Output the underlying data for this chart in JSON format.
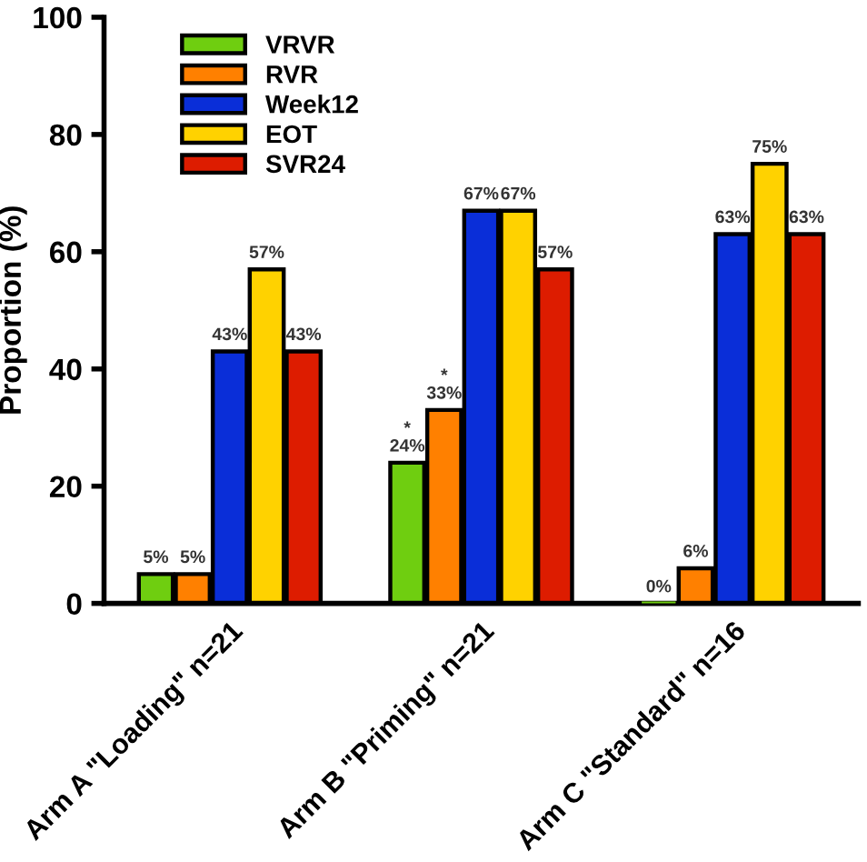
{
  "chart_data": {
    "type": "bar",
    "ylabel": "Proportion (%)",
    "categories": [
      "Arm A \"Loading\" n=21",
      "Arm B \"Priming\" n=21",
      "Arm C \"Standard\" n=16"
    ],
    "series": [
      {
        "name": "VRVR",
        "color": "#6fce10",
        "values": [
          5,
          24,
          0
        ],
        "value_labels": [
          "5%",
          "*\n24%",
          "0%"
        ]
      },
      {
        "name": "RVR",
        "color": "#ff8000",
        "values": [
          5,
          33,
          6
        ],
        "value_labels": [
          "5%",
          "*\n33%",
          "6%"
        ]
      },
      {
        "name": "Week12",
        "color": "#0a2ed8",
        "values": [
          43,
          67,
          63
        ],
        "value_labels": [
          "43%",
          "67%",
          "63%"
        ]
      },
      {
        "name": "EOT",
        "color": "#ffd200",
        "values": [
          57,
          67,
          75
        ],
        "value_labels": [
          "57%",
          "67%",
          "75%"
        ]
      },
      {
        "name": "SVR24",
        "color": "#dd1c00",
        "values": [
          43,
          57,
          63
        ],
        "value_labels": [
          "43%",
          "57%",
          "63%"
        ]
      }
    ],
    "ylim": [
      0,
      100
    ],
    "yticks": [
      0,
      20,
      40,
      60,
      80,
      100
    ],
    "legend": "top left",
    "grid": false
  }
}
